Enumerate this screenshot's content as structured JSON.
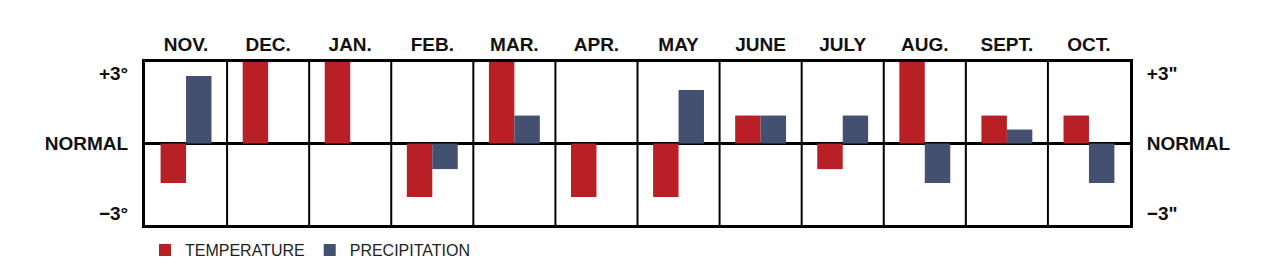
{
  "chart_data": {
    "type": "bar",
    "categories": [
      "NOV.",
      "DEC.",
      "JAN.",
      "FEB.",
      "MAR.",
      "APR.",
      "MAY",
      "JUNE",
      "JULY",
      "AUG.",
      "SEPT.",
      "OCT."
    ],
    "series": [
      {
        "name": "TEMPERATURE",
        "color": "#b82025",
        "values": [
          -1.7,
          3.5,
          3.5,
          -2.3,
          3.5,
          -2.3,
          -2.3,
          1.2,
          -1.1,
          3.5,
          1.2,
          1.2
        ]
      },
      {
        "name": "PRECIPITATION",
        "color": "#44506f",
        "axis": "y2",
        "values": [
          2.9,
          null,
          null,
          -1.1,
          1.2,
          null,
          2.3,
          1.2,
          1.2,
          -1.7,
          0.6,
          -1.7
        ]
      }
    ],
    "ylim": [
      -3.5,
      3.5
    ],
    "yticks": [
      {
        "value": 3,
        "label": "+3°"
      },
      {
        "value": 0,
        "label": "NORMAL"
      },
      {
        "value": -3,
        "label": "−3°"
      }
    ],
    "y2lim": [
      -3.5,
      3.5
    ],
    "y2ticks": [
      {
        "value": 3,
        "label": "+3\""
      },
      {
        "value": 0,
        "label": "NORMAL"
      },
      {
        "value": -3,
        "label": "−3\""
      }
    ],
    "grid": false,
    "legend": "bottom left"
  }
}
